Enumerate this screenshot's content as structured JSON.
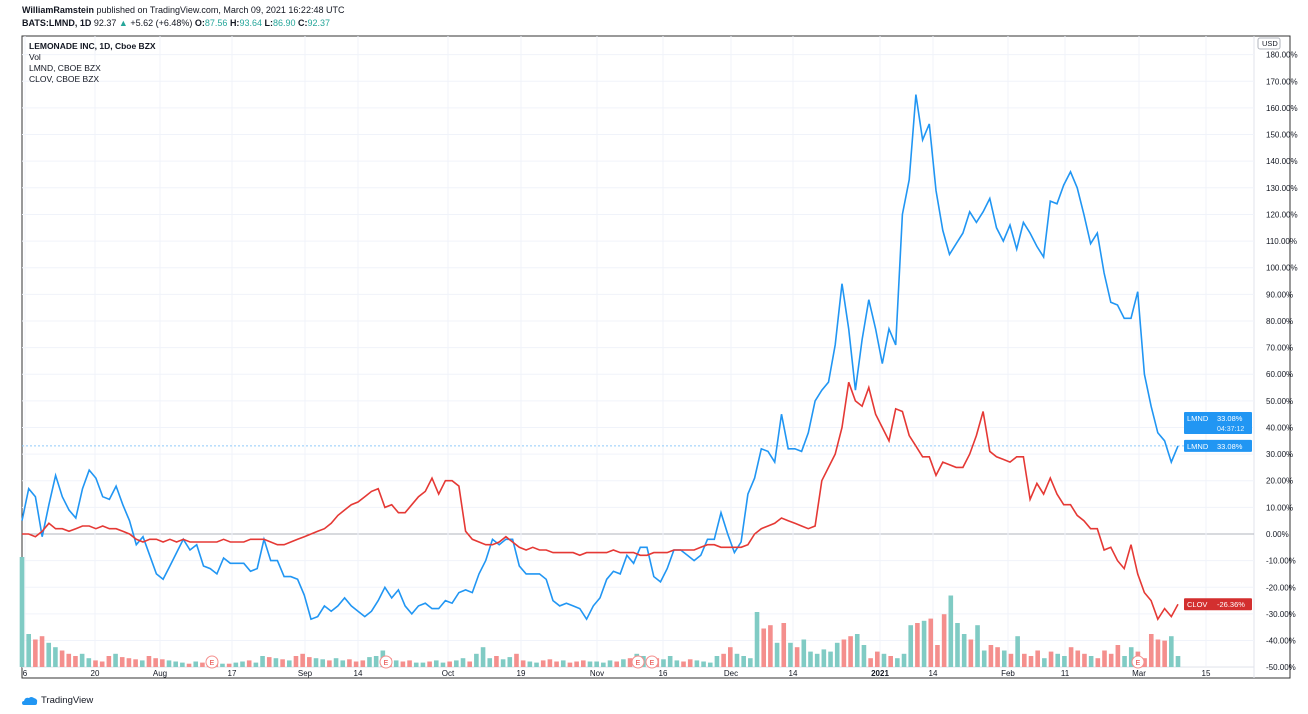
{
  "header": {
    "author": "WilliamRamstein",
    "published": "published on TradingView.com, March 09, 2021 16:22:48 UTC",
    "symbol": "BATS:LMND, 1D",
    "last": "92.37",
    "up_arrow": "▲",
    "change": "+5.62 (+6.48%)",
    "o_label": "O:",
    "o": "87.56",
    "h_label": "H:",
    "h": "93.64",
    "l_label": "L:",
    "l": "86.90",
    "c_label": "C:",
    "c": "92.37"
  },
  "legend": [
    "LEMONADE INC, 1D, Cboe BZX",
    "Vol",
    "LMND, CBOE BZX",
    "CLOV, CBOE BZX"
  ],
  "footer": {
    "brand": "TradingView"
  },
  "chart_data": {
    "type": "line",
    "currency": "USD",
    "ylim": [
      -50,
      180
    ],
    "yticks": [
      180,
      170,
      160,
      150,
      140,
      130,
      120,
      110,
      100,
      90,
      80,
      70,
      60,
      50,
      40,
      30,
      20,
      10,
      0,
      -10,
      -20,
      -30,
      -40,
      -50
    ],
    "ytick_format": "%",
    "grid": true,
    "xtick_labels": [
      "6",
      "20",
      "Aug",
      "17",
      "Sep",
      "14",
      "Oct",
      "19",
      "Nov",
      "16",
      "Dec",
      "14",
      "2021",
      "14",
      "Feb",
      "11",
      "Mar",
      "15"
    ],
    "series": [
      {
        "name": "LMND",
        "color": "#2196f3",
        "last_label": "33.08%",
        "countdown": "04:37:12",
        "values": [
          5,
          17,
          14,
          -1,
          11,
          22,
          14,
          9,
          6,
          17,
          24,
          21,
          14,
          13,
          18,
          11,
          5,
          -4,
          -1,
          -8,
          -15,
          -17,
          -12,
          -7,
          -2,
          -6,
          -4,
          -12,
          -13,
          -15,
          -9,
          -11,
          -11,
          -11,
          -14,
          -13,
          -2,
          -10,
          -10,
          -16,
          -16,
          -17,
          -23,
          -32,
          -31,
          -27,
          -29,
          -27,
          -24,
          -27,
          -29,
          -31,
          -29,
          -25,
          -20,
          -24,
          -21,
          -27,
          -30,
          -27,
          -26,
          -28,
          -28,
          -25,
          -26,
          -22,
          -21,
          -22,
          -15,
          -10,
          -2,
          -4,
          -2,
          -2,
          -12,
          -15,
          -15,
          -15,
          -17,
          -25,
          -27,
          -26,
          -27,
          -28,
          -32,
          -27,
          -24,
          -17,
          -14,
          -15,
          -8,
          -11,
          -5,
          -5,
          -16,
          -18,
          -13,
          -6,
          -6,
          -8,
          -10,
          -8,
          -2,
          -2,
          8,
          0,
          -7,
          -3,
          15,
          21,
          32,
          31,
          27,
          45,
          32,
          32,
          31,
          38,
          50,
          54,
          57,
          71,
          94,
          77,
          54,
          73,
          88,
          77,
          64,
          77,
          71,
          120,
          133,
          165,
          148,
          154,
          129,
          114,
          105,
          109,
          113,
          121,
          117,
          121,
          126,
          115,
          110,
          116,
          107,
          117,
          113,
          108,
          104,
          125,
          124,
          131,
          136,
          130,
          120,
          109,
          113,
          98,
          87,
          86,
          81,
          81,
          91,
          60,
          48,
          38,
          35,
          27,
          33.08
        ]
      },
      {
        "name": "CLOV",
        "color": "#e53935",
        "last_label": "-26.36%",
        "values": [
          0,
          0,
          -1,
          1,
          4,
          2,
          2,
          1,
          2,
          3,
          3,
          2,
          3,
          2,
          2,
          1,
          0,
          -2,
          -3,
          -2,
          -2,
          -3,
          -2,
          -3,
          -2,
          -3,
          -3,
          -3,
          -3,
          -3,
          -2,
          -3,
          -3,
          -3,
          -2,
          -2,
          -2,
          -3,
          -4,
          -4,
          -3,
          -2,
          -1,
          0,
          1,
          2,
          4,
          7,
          9,
          11,
          12,
          14,
          16,
          17,
          10,
          11,
          8,
          8,
          11,
          14,
          16,
          21,
          15,
          20,
          20,
          18,
          1,
          -2,
          -3,
          -4,
          -4,
          -3,
          -1,
          -3,
          -5,
          -6,
          -5,
          -6,
          -6,
          -7,
          -7,
          -7,
          -7,
          -8,
          -7,
          -7,
          -7,
          -7,
          -6,
          -7,
          -7,
          -7,
          -8,
          -8,
          -7,
          -7,
          -7,
          -6,
          -6,
          -6,
          -6,
          -5,
          -4,
          -4,
          -5,
          -5,
          -5,
          -5,
          -4,
          0,
          2,
          3,
          4,
          6,
          5,
          4,
          3,
          2,
          3,
          20,
          25,
          30,
          40,
          57,
          50,
          48,
          55,
          45,
          40,
          35,
          47,
          46,
          37,
          33,
          29,
          29,
          22,
          27,
          26,
          25,
          25,
          30,
          37,
          46,
          31,
          29,
          28,
          27,
          29,
          29,
          13,
          19,
          15,
          21,
          15,
          11,
          11,
          7,
          5,
          2,
          2,
          -6,
          -5,
          -10,
          -13,
          -4,
          -15,
          -22,
          -25,
          -32,
          -28,
          -31,
          -26.36
        ]
      }
    ],
    "volume": {
      "up_color": "#80cbc4",
      "down_color": "#f48f8d",
      "values": [
        100,
        30,
        25,
        28,
        22,
        18,
        15,
        12,
        10,
        12,
        8,
        6,
        5,
        10,
        12,
        9,
        8,
        7,
        6,
        10,
        8,
        7,
        6,
        5,
        4,
        3,
        5,
        4,
        4,
        5,
        3,
        3,
        4,
        5,
        6,
        4,
        10,
        9,
        8,
        7,
        6,
        10,
        12,
        9,
        8,
        7,
        6,
        8,
        6,
        7,
        5,
        6,
        9,
        10,
        15,
        8,
        6,
        5,
        6,
        4,
        4,
        5,
        6,
        4,
        5,
        6,
        8,
        5,
        12,
        18,
        8,
        10,
        7,
        9,
        12,
        6,
        5,
        4,
        6,
        7,
        5,
        6,
        4,
        5,
        6,
        5,
        5,
        4,
        6,
        5,
        7,
        8,
        12,
        10,
        9,
        8,
        7,
        10,
        6,
        5,
        7,
        6,
        5,
        4,
        10,
        12,
        18,
        12,
        10,
        8,
        50,
        35,
        38,
        22,
        40,
        22,
        18,
        25,
        14,
        12,
        16,
        14,
        22,
        25,
        28,
        30,
        20,
        8,
        14,
        12,
        10,
        8,
        12,
        38,
        40,
        42,
        44,
        20,
        48,
        65,
        40,
        30,
        25,
        38,
        15,
        20,
        18,
        15,
        12,
        28,
        12,
        10,
        15,
        8,
        14,
        12,
        10,
        18,
        15,
        12,
        10,
        8,
        15,
        12,
        20,
        10,
        18,
        14,
        8,
        30,
        25,
        24,
        28,
        10
      ]
    },
    "earnings_marker": "E"
  }
}
